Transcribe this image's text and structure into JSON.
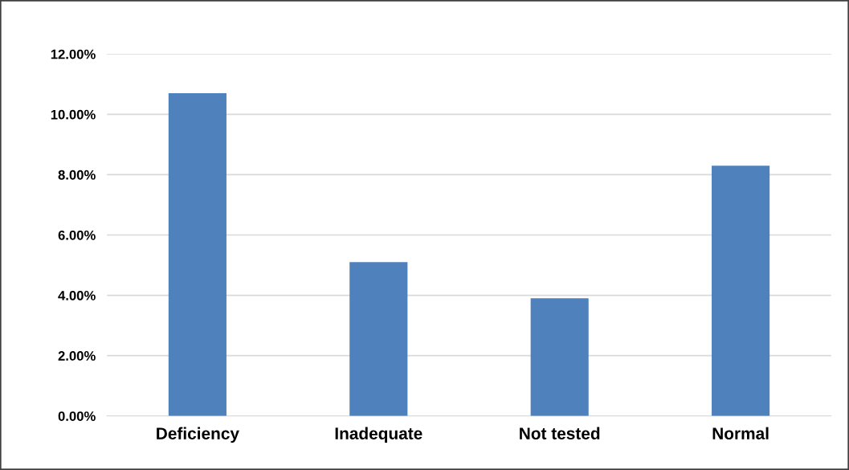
{
  "chart_data": {
    "type": "bar",
    "categories": [
      "Deficiency",
      "Inadequate",
      "Not tested",
      "Normal"
    ],
    "values": [
      10.7,
      5.1,
      3.9,
      8.3
    ],
    "color": "#4f81bd",
    "ylim": [
      0,
      12
    ],
    "yticks": [
      {
        "value": 0,
        "label": "0.00%"
      },
      {
        "value": 2,
        "label": "2.00%"
      },
      {
        "value": 4,
        "label": "4.00%"
      },
      {
        "value": 6,
        "label": "6.00%"
      },
      {
        "value": 8,
        "label": "8.00%"
      },
      {
        "value": 10,
        "label": "10.00%"
      },
      {
        "value": 12,
        "label": "12.00%"
      }
    ],
    "grid": "y"
  }
}
